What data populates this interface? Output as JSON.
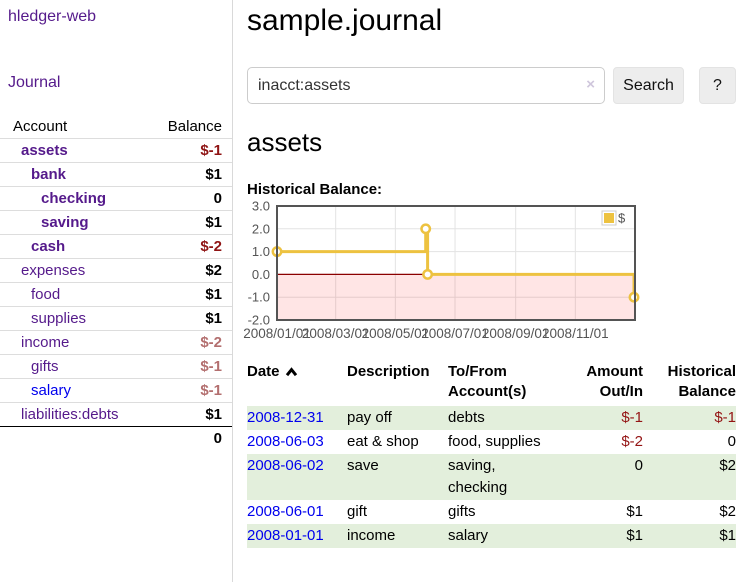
{
  "app": {
    "brand": "hledger-web",
    "nav_journal": "Journal"
  },
  "sidebar": {
    "header": {
      "account": "Account",
      "balance": "Balance"
    },
    "accounts": [
      {
        "name": "assets",
        "depth": 1,
        "bold": true,
        "balance": "$-1",
        "balance_style": "neg-strong"
      },
      {
        "name": "bank",
        "depth": 2,
        "bold": true,
        "balance": "$1",
        "balance_style": "pos"
      },
      {
        "name": "checking",
        "depth": 3,
        "bold": true,
        "balance": "0",
        "balance_style": "pos"
      },
      {
        "name": "saving",
        "depth": 3,
        "bold": true,
        "balance": "$1",
        "balance_style": "pos"
      },
      {
        "name": "cash",
        "depth": 2,
        "bold": true,
        "balance": "$-2",
        "balance_style": "neg-strong"
      },
      {
        "name": "expenses",
        "depth": 1,
        "bold": false,
        "balance": "$2",
        "balance_style": "pos"
      },
      {
        "name": "food",
        "depth": 2,
        "bold": false,
        "balance": "$1",
        "balance_style": "pos"
      },
      {
        "name": "supplies",
        "depth": 2,
        "bold": false,
        "balance": "$1",
        "balance_style": "pos"
      },
      {
        "name": "income",
        "depth": 1,
        "bold": false,
        "balance": "$-2",
        "balance_style": "neg-muted"
      },
      {
        "name": "gifts",
        "depth": 2,
        "bold": false,
        "balance": "$-1",
        "balance_style": "neg-muted"
      },
      {
        "name": "salary",
        "depth": 2,
        "bold": false,
        "balance": "$-1",
        "balance_style": "neg-muted",
        "link_style": "unvisited"
      },
      {
        "name": "liabilities:debts",
        "depth": 1,
        "bold": false,
        "balance": "$1",
        "balance_style": "pos"
      }
    ],
    "total": "0"
  },
  "main": {
    "title": "sample.journal",
    "search": {
      "value": "inacct:assets",
      "clear_icon": "×",
      "button": "Search",
      "help_button": "?"
    },
    "account_heading": "assets",
    "chart_label": "Historical Balance:"
  },
  "chart_data": {
    "type": "line",
    "step": true,
    "title": "Historical Balance:",
    "series": [
      {
        "name": "$",
        "color": "#edc240",
        "points": [
          [
            "2008-01-01",
            1
          ],
          [
            "2008-06-01",
            2
          ],
          [
            "2008-06-03",
            0
          ],
          [
            "2008-12-31",
            -1
          ]
        ]
      }
    ],
    "x_domain": [
      "2008-01-01",
      "2009-01-01"
    ],
    "x_ticks": [
      "2008-01-01",
      "2008-03-01",
      "2008-05-01",
      "2008-07-01",
      "2008-09-01",
      "2008-11-01"
    ],
    "x_tick_labels": [
      "2008/01/01",
      "2008/03/01",
      "2008/05/01",
      "2008/07/01",
      "2008/09/01",
      "2008/11/01"
    ],
    "y_ticks": [
      3.0,
      2.0,
      1.0,
      0.0,
      -1.0,
      -2.0
    ],
    "ylim": [
      -2.0,
      3.0
    ],
    "grid": true,
    "legend_position": "top-right",
    "colors": {
      "grid_line": "#e3e3e3",
      "border": "#545454",
      "tick_label": "#545454",
      "negative_region_fill": "rgba(255,0,0,0.10)",
      "zero_line": "#8b0000",
      "point_fill": "#ffffff"
    }
  },
  "table": {
    "headers": {
      "date": "Date",
      "description": "Description",
      "accounts": "To/From Account(s)",
      "amount": "Amount Out/In",
      "balance": "Historical Balance"
    },
    "sort_icon": "chevron-up",
    "rows": [
      {
        "date": "2008-12-31",
        "description": "pay off",
        "accounts": "debts",
        "amount": "$-1",
        "amount_neg": true,
        "balance": "$-1",
        "balance_neg": true
      },
      {
        "date": "2008-06-03",
        "description": "eat & shop",
        "accounts": "food, supplies",
        "amount": "$-2",
        "amount_neg": true,
        "balance": "0",
        "balance_neg": false
      },
      {
        "date": "2008-06-02",
        "description": "save",
        "accounts": "saving, checking",
        "amount": "0",
        "amount_neg": false,
        "balance": "$2",
        "balance_neg": false
      },
      {
        "date": "2008-06-01",
        "description": "gift",
        "accounts": "gifts",
        "amount": "$1",
        "amount_neg": false,
        "balance": "$2",
        "balance_neg": false
      },
      {
        "date": "2008-01-01",
        "description": "income",
        "accounts": "salary",
        "amount": "$1",
        "amount_neg": false,
        "balance": "$1",
        "balance_neg": false
      }
    ]
  }
}
